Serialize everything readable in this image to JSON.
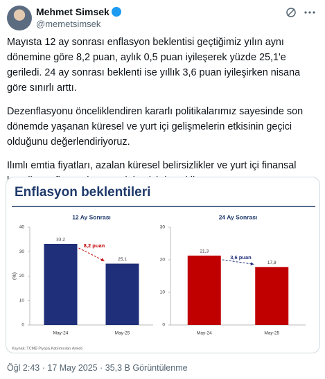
{
  "header": {
    "name": "Mehmet Simsek",
    "handle": "@memetsimsek"
  },
  "paragraphs": [
    "Mayısta 12 ay sonrası enflasyon beklentisi geçtiğimiz yılın aynı dönemine göre 8,2 puan, aylık 0,5 puan iyileşerek yüzde 25,1'e geriledi. 24 ay sonrası beklenti ise yıllık 3,6 puan iyileşirken nisana göre sınırlı arttı.",
    "Dezenflasyonu önceliklendiren kararlı politikalarımız sayesinde son dönemde yaşanan küresel ve yurt içi gelişmelerin etkisinin geçici olduğunu değerlendiriyoruz.",
    "Ilımlı emtia fiyatları, azalan küresel belirsizlikler ve yurt içi finansal koşullar enflasyonla mücadelemizi destekliyor."
  ],
  "image": {
    "title": "Enflasyon beklentileri",
    "source": "Kaynak: TCMB Piyasa Katılımcıları Anketi"
  },
  "chart_data": [
    {
      "type": "bar",
      "title": "12 Ay Sonrası",
      "ylabel": "(%)",
      "categories": [
        "May-24",
        "May-25"
      ],
      "values": [
        33.2,
        25.1
      ],
      "value_labels": [
        "33,2",
        "25,1"
      ],
      "color": "#1f2f7a",
      "ylim": [
        0,
        40
      ],
      "yticks": [
        0,
        10,
        20,
        30,
        40
      ],
      "annotation": "8,2 puan",
      "annotation_color": "#c00000"
    },
    {
      "type": "bar",
      "title": "24 Ay Sonrası",
      "categories": [
        "May-24",
        "May-25"
      ],
      "values": [
        21.3,
        17.8
      ],
      "value_labels": [
        "21,3",
        "17,8"
      ],
      "color": "#c00000",
      "ylim": [
        0,
        30
      ],
      "yticks": [
        0,
        10,
        20,
        30
      ],
      "annotation": "3,6 puan",
      "annotation_color": "#1f2f7a"
    }
  ],
  "footer": "Öğl 2:43 · 17 May 2025 · 35,3 B Görüntülenme"
}
